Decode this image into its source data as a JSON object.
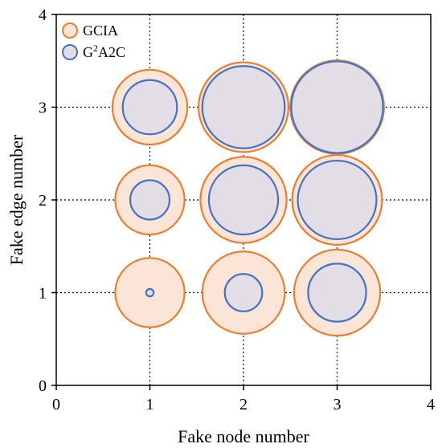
{
  "chart_data": {
    "type": "bubble",
    "xlabel": "Fake node number",
    "ylabel": "Fake edge number",
    "xlim": [
      0,
      4
    ],
    "ylim": [
      0,
      4
    ],
    "xticks": [
      "0",
      "1",
      "2",
      "3",
      "4"
    ],
    "yticks": [
      "0",
      "1",
      "2",
      "3",
      "4"
    ],
    "grid": "dotted",
    "legend_position": "top-left",
    "series": [
      {
        "name": "GCIA",
        "legend_base": "GCIA",
        "legend_sup": "",
        "legend_rest": "",
        "color": "#ED7D31",
        "fill": "#FBE5D6",
        "points": [
          {
            "x": 1,
            "y": 1,
            "size": 0.37
          },
          {
            "x": 2,
            "y": 1,
            "size": 0.44
          },
          {
            "x": 3,
            "y": 1,
            "size": 0.46
          },
          {
            "x": 1,
            "y": 2,
            "size": 0.37
          },
          {
            "x": 2,
            "y": 2,
            "size": 0.46
          },
          {
            "x": 3,
            "y": 2,
            "size": 0.48
          },
          {
            "x": 1,
            "y": 3,
            "size": 0.4
          },
          {
            "x": 2,
            "y": 3,
            "size": 0.48
          },
          {
            "x": 3,
            "y": 3,
            "size": 0.5
          }
        ]
      },
      {
        "name": "G2A2C",
        "legend_base": "G",
        "legend_sup": "2",
        "legend_rest": "A2C",
        "color": "#4472C4",
        "fill": "#E3DDE6",
        "points": [
          {
            "x": 1,
            "y": 1,
            "size": 0.04
          },
          {
            "x": 2,
            "y": 1,
            "size": 0.2
          },
          {
            "x": 3,
            "y": 1,
            "size": 0.31
          },
          {
            "x": 1,
            "y": 2,
            "size": 0.21
          },
          {
            "x": 2,
            "y": 2,
            "size": 0.37
          },
          {
            "x": 3,
            "y": 2,
            "size": 0.42
          },
          {
            "x": 1,
            "y": 3,
            "size": 0.29
          },
          {
            "x": 2,
            "y": 3,
            "size": 0.44
          },
          {
            "x": 3,
            "y": 3,
            "size": 0.49
          }
        ]
      }
    ]
  }
}
